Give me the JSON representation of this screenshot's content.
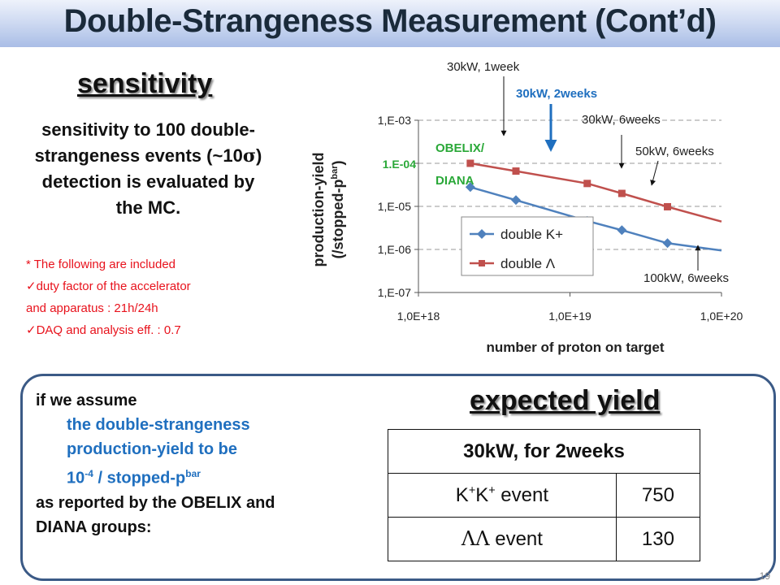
{
  "slide": {
    "title": "Double-Strangeness Measurement (Cont’d)",
    "page_number": "19"
  },
  "sensitivity": {
    "heading": "sensitivity",
    "text_line1": "sensitivity to 100 double-",
    "text_line2": "strangeness events (~10",
    "sigma_symbol": "σ",
    "text_line2_end": ")",
    "text_line3": "detection is evaluated by",
    "text_line4": "the MC.",
    "note_intro": "* The following are included",
    "note_1a": "duty factor of the accelerator",
    "note_1b": "and apparatus : 21h/24h",
    "note_2": "DAQ and analysis eff.  : 0.7"
  },
  "chart_data": {
    "type": "line",
    "x_scale": "log",
    "y_scale": "log",
    "xlim": [
      1e+18,
      1e+20
    ],
    "ylim": [
      1e-07,
      0.001
    ],
    "xlabel": "number of proton on target",
    "ylabel_line1": "production-yield",
    "ylabel_line2_pre": "(/stopped-p",
    "ylabel_line2_sup": "bar",
    "ylabel_line2_post": ")",
    "x_ticks": [
      "1,0E+18",
      "1,0E+19",
      "1,0E+20"
    ],
    "y_ticks": [
      "1,E-03",
      "1,E-05",
      "1,E-06",
      "1,E-07"
    ],
    "y_marker_label": "1.E-04",
    "grid": "horizontal dashed",
    "legend_position": "lower-left inside",
    "series": [
      {
        "name": "double K+",
        "color": "#4f81bd",
        "marker": "diamond",
        "x": [
          2.2e+18,
          4.4e+18,
          1.3e+19,
          2.2e+19,
          4.4e+19,
          8e+19
        ],
        "y": [
          2.8e-05,
          1.4e-05,
          4.6e-06,
          2.8e-06,
          1.4e-06,
          1.05e-06
        ]
      },
      {
        "name": "double Λ",
        "color": "#c0504d",
        "marker": "square",
        "x": [
          2.2e+18,
          4.4e+18,
          1.3e+19,
          2.2e+19,
          4.4e+19,
          8e+19
        ],
        "y": [
          0.0001,
          6.6e-05,
          3.4e-05,
          2e-05,
          9.8e-06,
          5.5e-06
        ]
      }
    ],
    "annotations": {
      "a_1week": "30kW, 1week",
      "a_2weeks": "30kW, 2weeks",
      "a_6weeks_30": "30kW, 6weeks",
      "a_6weeks_50": "50kW, 6weeks",
      "a_6weeks_100": "100kW, 6weeks",
      "obelix": "OBELIX/",
      "diana": "DIANA"
    }
  },
  "assumption": {
    "line1": "if we assume",
    "line2": "the double-strangeness",
    "line3": "production-yield to be",
    "line4_base": "10",
    "line4_exp": "-4",
    "line4_mid": " / stopped-p",
    "line4_sup": "bar",
    "line5": "as reported by the OBELIX and",
    "line6": "DIANA groups:"
  },
  "expected_yield": {
    "heading": "expected yield",
    "table_header": "30kW, for 2weeks",
    "row1_label_base1": "K",
    "row1_label_sup1": "+",
    "row1_label_base2": "K",
    "row1_label_sup2": "+",
    "row1_label_rest": " event",
    "row1_value": "750",
    "row2_label_sym": "ΛΛ",
    "row2_label_rest": " event",
    "row2_value": "130"
  }
}
